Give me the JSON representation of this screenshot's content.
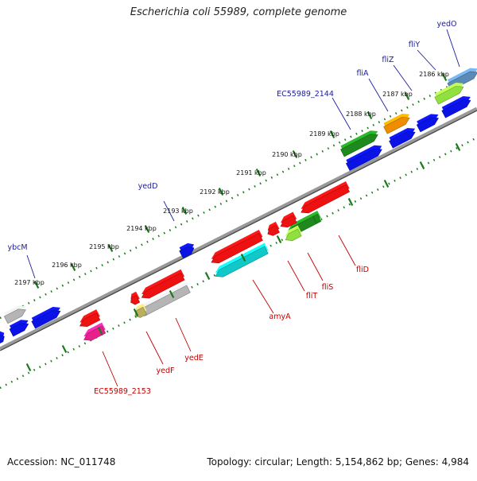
{
  "title": "Escherichia coli 55989, complete genome",
  "footer": {
    "accession": "Accession: NC_011748",
    "summary": "Topology: circular; Length: 5,154,862 bp; Genes: 4,984"
  },
  "colors": {
    "backbone": "#888888",
    "tick": "#1a7a1a",
    "forward_label": "#1a1aa0",
    "reverse_label": "#c00000",
    "blue": "#0a12e6",
    "red": "#ee1111",
    "green": "#1e8a1e",
    "cyan": "#10c8c8",
    "gray": "#b5b5b5",
    "orange": "#f08c00",
    "pink": "#e8208a",
    "olive": "#b8b060",
    "lime": "#90e040",
    "steel": "#5a8ab5"
  },
  "ticks": [
    {
      "label": "2186 kbp"
    },
    {
      "label": "2187 kbp"
    },
    {
      "label": "2188 kbp"
    },
    {
      "label": "2189 kbp"
    },
    {
      "label": "2190 kbp"
    },
    {
      "label": "2191 kbp"
    },
    {
      "label": "2192 kbp"
    },
    {
      "label": "2193 kbp"
    },
    {
      "label": "2194 kbp"
    },
    {
      "label": "2195 kbp"
    },
    {
      "label": "2196 kbp"
    },
    {
      "label": "2197 kbp"
    }
  ],
  "forward_labels": [
    {
      "name": "yedO"
    },
    {
      "name": "fliY"
    },
    {
      "name": "fliZ"
    },
    {
      "name": "fliA"
    },
    {
      "name": "EC55989_2144"
    },
    {
      "name": "yedD"
    },
    {
      "name": "ybcM"
    }
  ],
  "reverse_labels": [
    {
      "name": "fliD"
    },
    {
      "name": "fliS"
    },
    {
      "name": "fliT"
    },
    {
      "name": "amyA"
    },
    {
      "name": "yedE"
    },
    {
      "name": "yedF"
    },
    {
      "name": "EC55989_2153"
    }
  ]
}
